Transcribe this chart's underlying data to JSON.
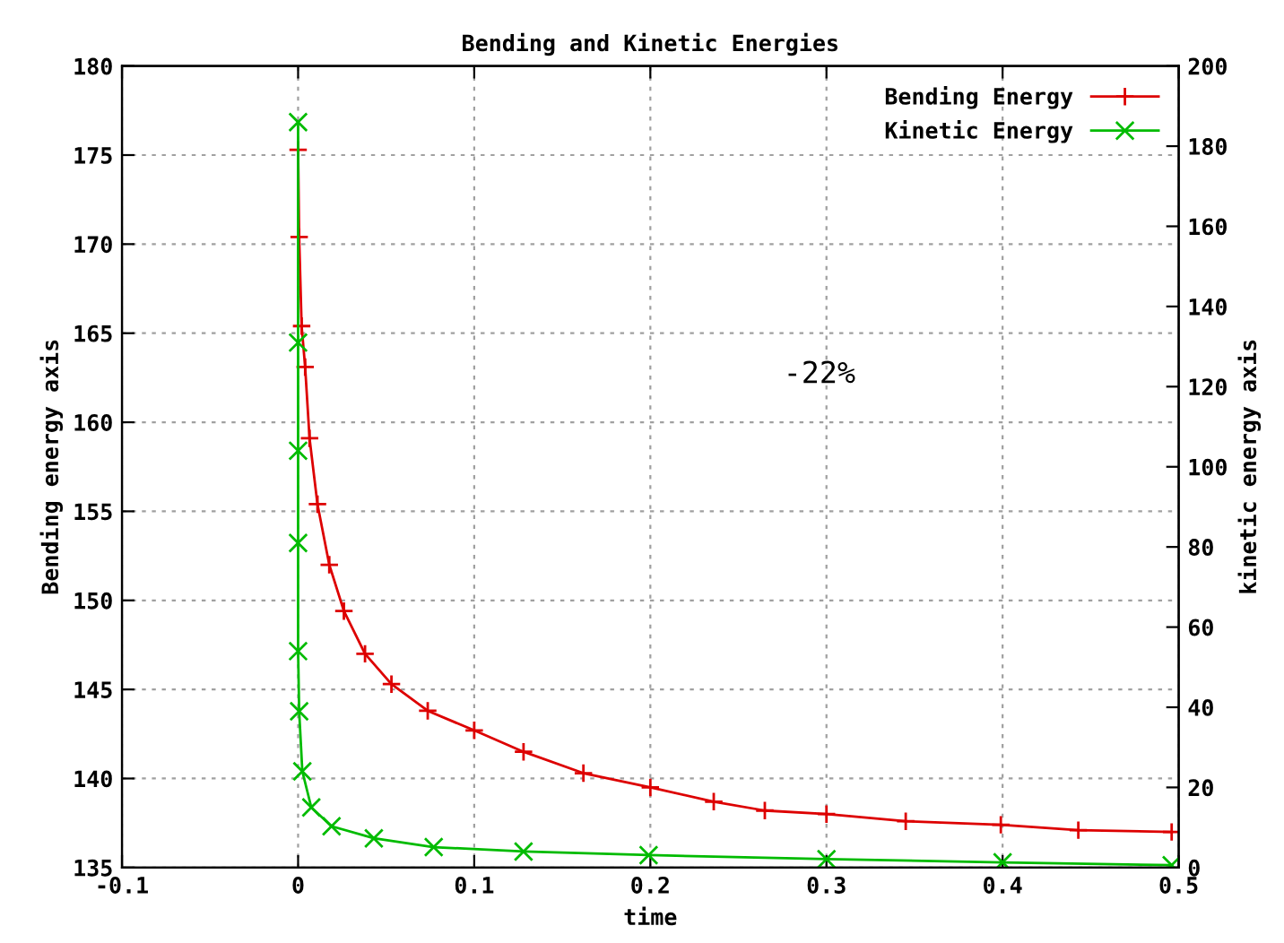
{
  "chart_data": {
    "type": "line",
    "title": "Bending and Kinetic Energies",
    "xlabel": "time",
    "ylabel": "Bending energy axis",
    "y2label": "kinetic energy axis",
    "xlim": [
      -0.1,
      0.5
    ],
    "xticks": [
      -0.1,
      0,
      0.1,
      0.2,
      0.3,
      0.4,
      0.5
    ],
    "ylim": [
      135,
      180
    ],
    "yticks": [
      135,
      140,
      145,
      150,
      155,
      160,
      165,
      170,
      175,
      180
    ],
    "y2lim": [
      0,
      200
    ],
    "y2ticks": [
      0,
      20,
      40,
      60,
      80,
      100,
      120,
      140,
      160,
      180,
      200
    ],
    "grid": true,
    "legend": "top right",
    "line_style": "solid",
    "annotations": [
      "-22%"
    ],
    "series": [
      {
        "name": "Bending Energy",
        "color": "#dd0000",
        "marker": "cross",
        "x": [
          0,
          0.0006,
          0.002,
          0.004,
          0.0065,
          0.011,
          0.0177,
          0.026,
          0.038,
          0.053,
          0.0736,
          0.1,
          0.128,
          0.162,
          0.2,
          0.236,
          0.265,
          0.3,
          0.345,
          0.399,
          0.443,
          0.496
        ],
        "values": [
          175.3,
          170.4,
          165.4,
          163.1,
          159.1,
          155.4,
          152.0,
          149.4,
          147.0,
          145.3,
          143.8,
          142.7,
          141.5,
          140.3,
          139.5,
          138.7,
          138.2,
          138.0,
          137.6,
          137.4,
          137.1,
          137.0
        ]
      },
      {
        "name": "Kinetic Energy",
        "color": "#00bb00",
        "marker": "x",
        "axis": "y2",
        "x": [
          0,
          0,
          0,
          0,
          0,
          0.0006,
          0.0024,
          0.0075,
          0.019,
          0.043,
          0.077,
          0.128,
          0.199,
          0.3,
          0.4,
          0.496
        ],
        "values": [
          186,
          131,
          104,
          81,
          54,
          39,
          24,
          15,
          10.3,
          7.3,
          5.1,
          4.0,
          3.1,
          2.1,
          1.3,
          0.6
        ]
      }
    ]
  }
}
